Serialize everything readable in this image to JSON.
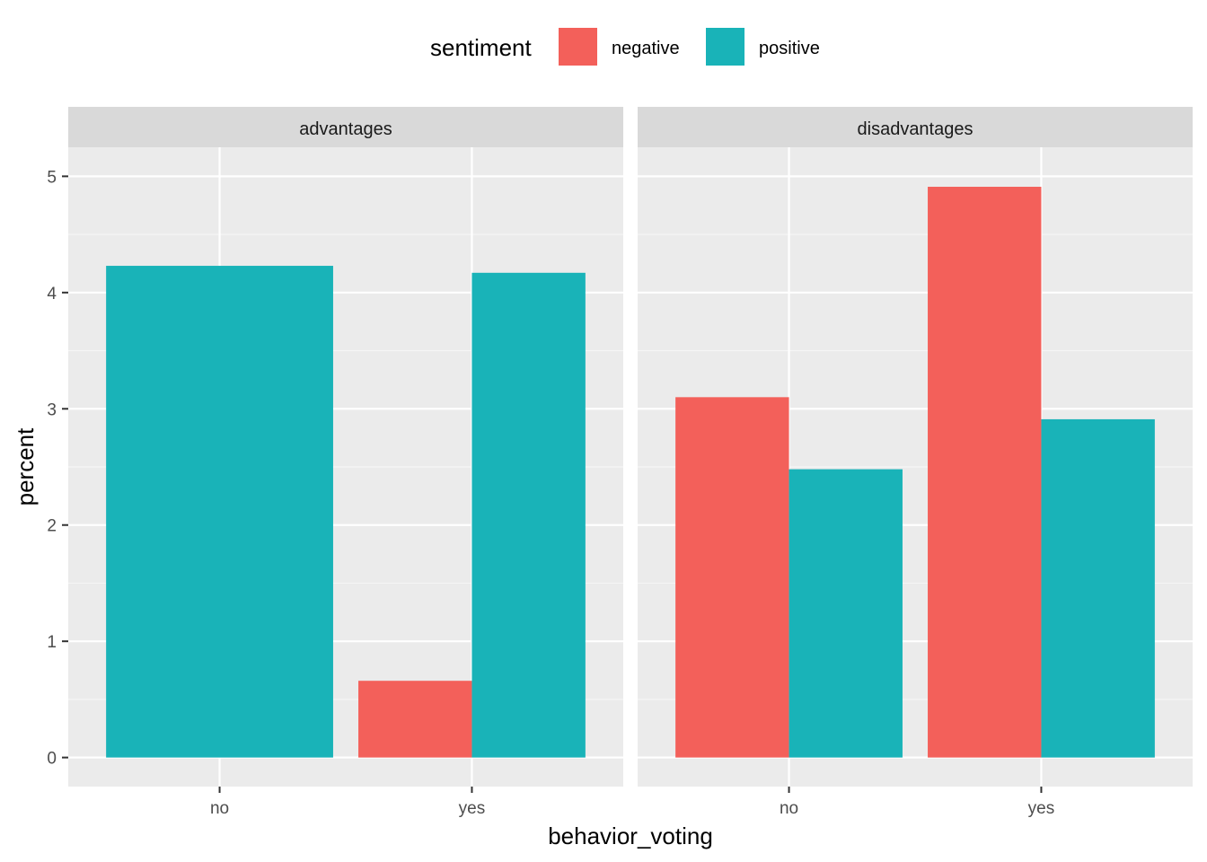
{
  "chart_data": {
    "type": "bar",
    "facet_variable": "",
    "facets": [
      {
        "label": "advantages",
        "categories": [
          "no",
          "yes"
        ],
        "series": [
          {
            "name": "negative",
            "values": [
              null,
              0.66
            ]
          },
          {
            "name": "positive",
            "values": [
              4.23,
              4.17
            ]
          }
        ]
      },
      {
        "label": "disadvantages",
        "categories": [
          "no",
          "yes"
        ],
        "series": [
          {
            "name": "negative",
            "values": [
              3.1,
              4.91
            ]
          },
          {
            "name": "positive",
            "values": [
              2.48,
              2.91
            ]
          }
        ]
      }
    ],
    "xlabel": "behavior_voting",
    "ylabel": "percent",
    "ylim": [
      -0.25,
      5.25
    ],
    "yticks": [
      0,
      1,
      2,
      3,
      4,
      5
    ],
    "grid": true,
    "legend": {
      "title": "sentiment",
      "placement": "top",
      "entries": [
        {
          "label": "negative",
          "color": "#F8766D"
        },
        {
          "label": "positive",
          "color": "#00BFC4"
        }
      ]
    },
    "colors": {
      "negative": "#F3605A",
      "positive": "#19B3B8"
    }
  }
}
